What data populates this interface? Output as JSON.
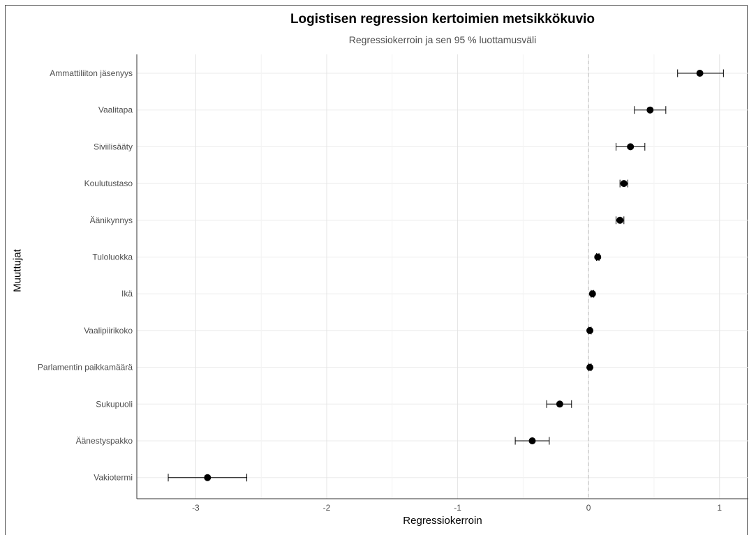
{
  "chart_data": {
    "type": "scatter",
    "title": "Logistisen regression kertoimien metsikkökuvio",
    "subtitle": "Regressiokerroin ja sen 95 % luottamusväli",
    "xlabel": "Regressiokerroin",
    "ylabel": "Muuttujat",
    "xlim": [
      -3.45,
      1.22
    ],
    "xticks": [
      -3,
      -2,
      -1,
      0,
      1
    ],
    "xtick_labels": [
      "-3",
      "-2",
      "-1",
      "0",
      "1"
    ],
    "reference_line": 0,
    "grid": true,
    "categories": [
      "Ammattiliiton jäsenyys",
      "Vaalitapa",
      "Siviilisääty",
      "Koulutustaso",
      "Äänikynnys",
      "Tuloluokka",
      "Ikä",
      "Vaalipiirikoko",
      "Parlamentin paikkamäärä",
      "Sukupuoli",
      "Äänestyspakko",
      "Vakiotermi"
    ],
    "estimates": [
      0.85,
      0.47,
      0.32,
      0.27,
      0.24,
      0.07,
      0.03,
      0.01,
      0.01,
      -0.22,
      -0.43,
      -2.91
    ],
    "ci_lower": [
      0.68,
      0.35,
      0.21,
      0.24,
      0.21,
      0.06,
      0.02,
      0.0,
      0.0,
      -0.32,
      -0.56,
      -3.21
    ],
    "ci_upper": [
      1.03,
      0.59,
      0.43,
      0.3,
      0.27,
      0.08,
      0.04,
      0.02,
      0.02,
      -0.13,
      -0.3,
      -2.61
    ]
  }
}
